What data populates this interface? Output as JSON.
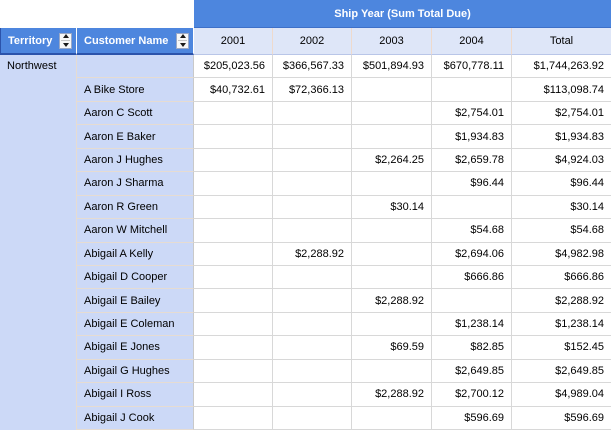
{
  "table": {
    "banner": "Ship Year (Sum Total Due)",
    "row_headers": [
      "Territory",
      "Customer Name"
    ],
    "columns": [
      "2001",
      "2002",
      "2003",
      "2004",
      "Total"
    ],
    "territory": "Northwest",
    "rows": [
      {
        "name": "",
        "values": [
          "$205,023.56",
          "$366,567.33",
          "$501,894.93",
          "$670,778.11",
          "$1,744,263.92"
        ]
      },
      {
        "name": "A Bike Store",
        "values": [
          "$40,732.61",
          "$72,366.13",
          "",
          "",
          "$113,098.74"
        ]
      },
      {
        "name": "Aaron C Scott",
        "values": [
          "",
          "",
          "",
          "$2,754.01",
          "$2,754.01"
        ]
      },
      {
        "name": "Aaron E Baker",
        "values": [
          "",
          "",
          "",
          "$1,934.83",
          "$1,934.83"
        ]
      },
      {
        "name": "Aaron J Hughes",
        "values": [
          "",
          "",
          "$2,264.25",
          "$2,659.78",
          "$4,924.03"
        ]
      },
      {
        "name": "Aaron J Sharma",
        "values": [
          "",
          "",
          "",
          "$96.44",
          "$96.44"
        ]
      },
      {
        "name": "Aaron R Green",
        "values": [
          "",
          "",
          "$30.14",
          "",
          "$30.14"
        ]
      },
      {
        "name": "Aaron W Mitchell",
        "values": [
          "",
          "",
          "",
          "$54.68",
          "$54.68"
        ]
      },
      {
        "name": "Abigail A Kelly",
        "values": [
          "",
          "$2,288.92",
          "",
          "$2,694.06",
          "$4,982.98"
        ]
      },
      {
        "name": "Abigail D Cooper",
        "values": [
          "",
          "",
          "",
          "$666.86",
          "$666.86"
        ]
      },
      {
        "name": "Abigail E Bailey",
        "values": [
          "",
          "",
          "$2,288.92",
          "",
          "$2,288.92"
        ]
      },
      {
        "name": "Abigail E Coleman",
        "values": [
          "",
          "",
          "",
          "$1,238.14",
          "$1,238.14"
        ]
      },
      {
        "name": "Abigail E Jones",
        "values": [
          "",
          "",
          "$69.59",
          "$82.85",
          "$152.45"
        ]
      },
      {
        "name": "Abigail G Hughes",
        "values": [
          "",
          "",
          "",
          "$2,649.85",
          "$2,649.85"
        ]
      },
      {
        "name": "Abigail I Ross",
        "values": [
          "",
          "",
          "$2,288.92",
          "$2,700.12",
          "$4,989.04"
        ]
      },
      {
        "name": "Abigail J Cook",
        "values": [
          "",
          "",
          "",
          "$596.69",
          "$596.69"
        ]
      }
    ],
    "colors": {
      "header_blue": "#4d86de",
      "header_border_dark": "#2b53ab",
      "year_row_bg": "#dee6f8",
      "row_area_bg": "#ccd9f7",
      "grid_line": "#d8d8d8"
    }
  }
}
